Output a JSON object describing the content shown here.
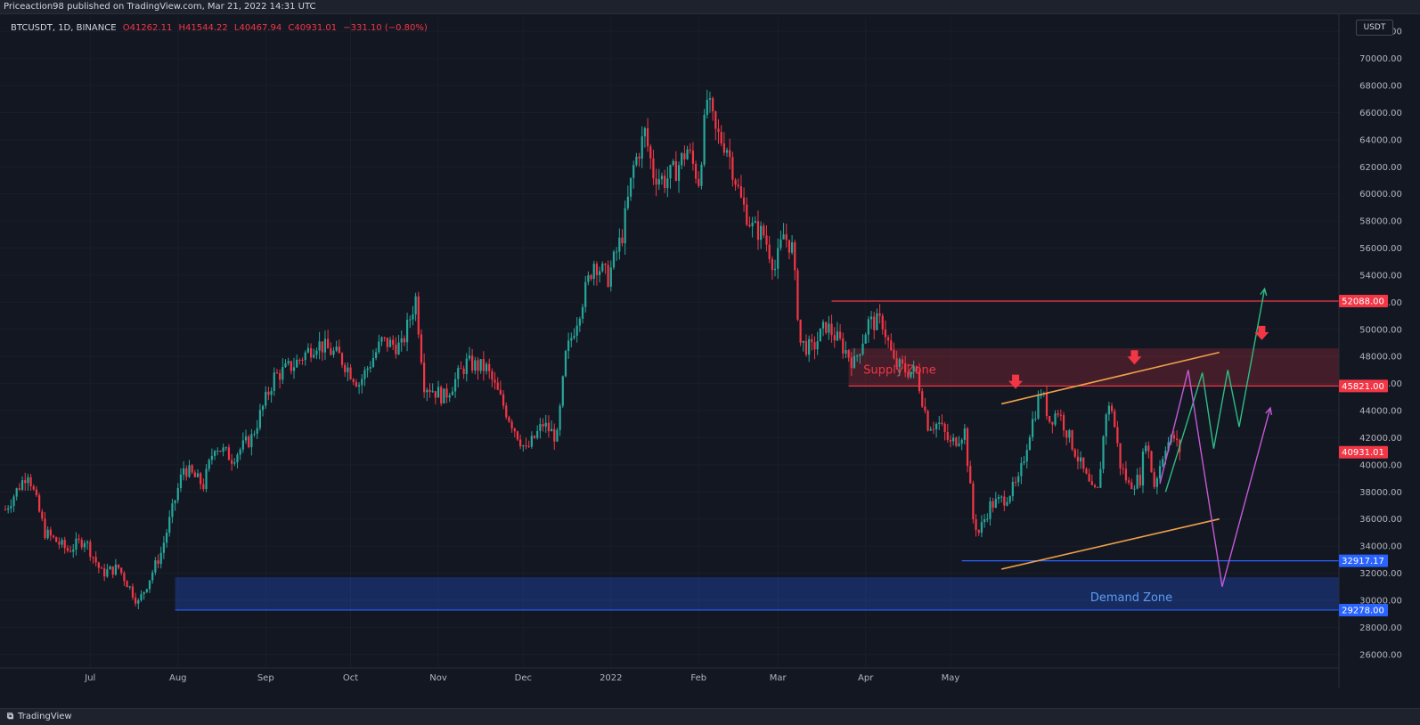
{
  "header": {
    "published": "Priceaction98 published on TradingView.com, Mar 21, 2022 14:31 UTC"
  },
  "legend": {
    "symbol": "BTCUSDT, 1D, BINANCE",
    "open": "O41262.11",
    "high": "H41544.22",
    "low": "L40467.94",
    "close": "C40931.01",
    "change": "−331.10 (−0.80%)"
  },
  "currency": "USDT",
  "footer": {
    "brand": "TradingView"
  },
  "colors": {
    "up": "#26a69a",
    "down": "#f23645",
    "supply": "#f23645",
    "demand": "#2962ff",
    "wedge": "#f0a04b",
    "path_green": "#2ebd85",
    "path_purple": "#c45ad6",
    "bg": "#131722"
  },
  "chart_data": {
    "type": "candlestick",
    "ylim": [
      25000,
      73000
    ],
    "y_ticks": [
      26000,
      28000,
      30000,
      32000,
      34000,
      36000,
      38000,
      40000,
      42000,
      44000,
      46000,
      48000,
      50000,
      52000,
      54000,
      56000,
      58000,
      60000,
      62000,
      64000,
      66000,
      68000,
      70000,
      72000
    ],
    "x_ticks": [
      "Jul",
      "Aug",
      "Sep",
      "Oct",
      "Nov",
      "Dec",
      "2022",
      "Feb",
      "Mar",
      "Apr",
      "May"
    ],
    "price_labels": [
      {
        "value": 52088.0,
        "label": "52088.00",
        "kind": "resistance"
      },
      {
        "value": 45821.0,
        "label": "45821.00",
        "kind": "resistance"
      },
      {
        "value": 40931.01,
        "label": "40931.01",
        "kind": "last"
      },
      {
        "value": 32917.17,
        "label": "32917.17",
        "kind": "support"
      },
      {
        "value": 29278.0,
        "label": "29278.00",
        "kind": "support"
      }
    ],
    "zones": [
      {
        "name": "Supply Zone",
        "from": 45821,
        "to": 48600
      },
      {
        "name": "Demand Zone",
        "from": 29278,
        "to": 31700
      }
    ],
    "annotations": [
      "Supply Zone",
      "Demand Zone"
    ],
    "series": [
      {
        "name": "BTCUSDT",
        "closes_key": [
          [
            0,
            36700
          ],
          [
            8,
            39500
          ],
          [
            14,
            35000
          ],
          [
            22,
            33700
          ],
          [
            28,
            34500
          ],
          [
            34,
            32000
          ],
          [
            40,
            32400
          ],
          [
            47,
            29800
          ],
          [
            55,
            33500
          ],
          [
            63,
            39800
          ],
          [
            70,
            38500
          ],
          [
            74,
            41500
          ],
          [
            80,
            40500
          ],
          [
            87,
            42000
          ],
          [
            95,
            46500
          ],
          [
            102,
            47400
          ],
          [
            110,
            49000
          ],
          [
            118,
            48000
          ],
          [
            125,
            46000
          ],
          [
            133,
            49100
          ],
          [
            140,
            48700
          ],
          [
            145,
            52300
          ],
          [
            148,
            46000
          ],
          [
            155,
            45000
          ],
          [
            163,
            47500
          ],
          [
            170,
            47100
          ],
          [
            178,
            43500
          ],
          [
            184,
            41000
          ],
          [
            190,
            43000
          ],
          [
            195,
            42000
          ],
          [
            198,
            48000
          ],
          [
            203,
            51500
          ],
          [
            208,
            55000
          ],
          [
            213,
            53800
          ],
          [
            218,
            57000
          ],
          [
            222,
            62000
          ],
          [
            226,
            64500
          ],
          [
            229,
            61500
          ],
          [
            233,
            61000
          ],
          [
            237,
            61800
          ],
          [
            241,
            63300
          ],
          [
            245,
            61000
          ],
          [
            248,
            67000
          ],
          [
            251,
            64500
          ],
          [
            255,
            63500
          ],
          [
            260,
            59500
          ],
          [
            264,
            57500
          ],
          [
            268,
            57000
          ],
          [
            272,
            54500
          ],
          [
            275,
            57000
          ],
          [
            278,
            56000
          ],
          [
            281,
            49000
          ],
          [
            285,
            48500
          ],
          [
            290,
            50300
          ],
          [
            295,
            49000
          ],
          [
            300,
            47500
          ],
          [
            305,
            50500
          ],
          [
            310,
            50500
          ],
          [
            314,
            47500
          ],
          [
            318,
            47000
          ],
          [
            322,
            46800
          ],
          [
            326,
            43000
          ],
          [
            330,
            43000
          ],
          [
            334,
            41500
          ],
          [
            339,
            42500
          ],
          [
            342,
            36000
          ],
          [
            344,
            35000
          ],
          [
            348,
            37000
          ],
          [
            353,
            37500
          ],
          [
            358,
            38700
          ],
          [
            362,
            42500
          ],
          [
            366,
            45500
          ],
          [
            369,
            43300
          ],
          [
            372,
            44000
          ],
          [
            376,
            42000
          ],
          [
            380,
            40000
          ],
          [
            384,
            38000
          ],
          [
            386,
            38000
          ],
          [
            389,
            44000
          ],
          [
            391,
            44200
          ],
          [
            394,
            40000
          ],
          [
            397,
            38500
          ],
          [
            401,
            39000
          ],
          [
            403,
            42000
          ],
          [
            406,
            38500
          ],
          [
            410,
            41500
          ],
          [
            413,
            42000
          ],
          [
            415,
            40931
          ]
        ]
      }
    ],
    "projections": [
      {
        "name": "green",
        "points": [
          [
            410,
            38000
          ],
          [
            423,
            46800
          ],
          [
            427,
            41200
          ],
          [
            432,
            47000
          ],
          [
            436,
            42800
          ],
          [
            445,
            53000
          ]
        ]
      },
      {
        "name": "purple",
        "points": [
          [
            408,
            38600
          ],
          [
            418,
            47000
          ],
          [
            430,
            31000
          ],
          [
            447,
            44200
          ]
        ]
      }
    ],
    "wedge": {
      "upper": [
        [
          352,
          44500
        ],
        [
          429,
          48300
        ]
      ],
      "lower": [
        [
          352,
          32300
        ],
        [
          429,
          36000
        ]
      ]
    },
    "arrows": [
      [
        357,
        46000
      ],
      [
        399,
        47800
      ],
      [
        444,
        49600
      ]
    ]
  }
}
